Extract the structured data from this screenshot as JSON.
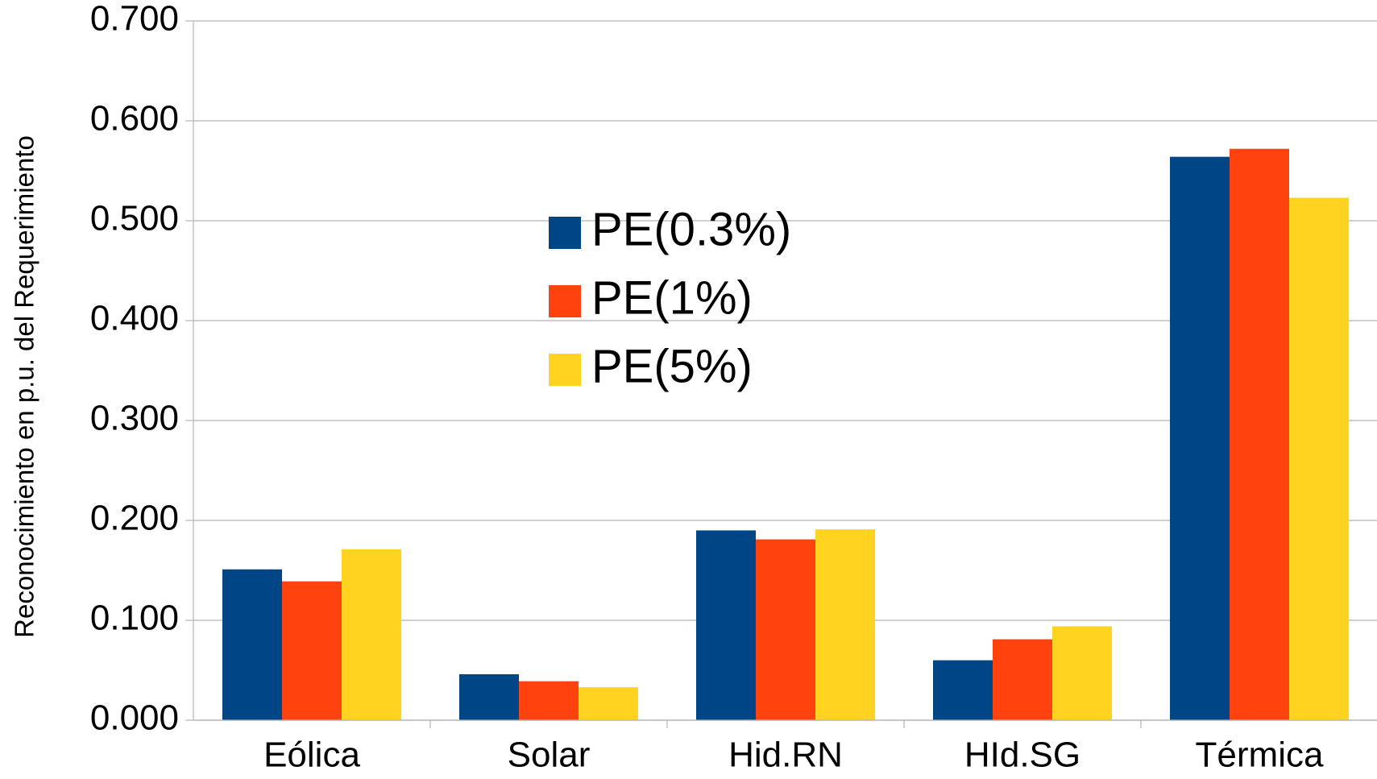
{
  "chart_data": {
    "type": "bar",
    "y_label": "Reconocimiento en p.u. del Requerimiento",
    "categories": [
      "Eólica",
      "Solar",
      "Hid.RN",
      "HId.SG",
      "Térmica"
    ],
    "series": [
      {
        "name": "PE(0.3%)",
        "color": "#004586",
        "values": [
          0.151,
          0.046,
          0.19,
          0.06,
          0.564
        ]
      },
      {
        "name": "PE(1%)",
        "color": "#ff420e",
        "values": [
          0.139,
          0.039,
          0.181,
          0.081,
          0.572
        ]
      },
      {
        "name": "PE(5%)",
        "color": "#ffd320",
        "values": [
          0.171,
          0.033,
          0.191,
          0.094,
          0.523
        ]
      }
    ],
    "ylim": [
      0,
      0.7
    ],
    "yticks": [
      {
        "value": 0,
        "label": "0.000"
      },
      {
        "value": 0.1,
        "label": "0.100"
      },
      {
        "value": 0.2,
        "label": "0.200"
      },
      {
        "value": 0.3,
        "label": "0.300"
      },
      {
        "value": 0.4,
        "label": "0.400"
      },
      {
        "value": 0.5,
        "label": "0.500"
      },
      {
        "value": 0.6,
        "label": "0.600"
      },
      {
        "value": 0.7,
        "label": "0.700"
      }
    ],
    "grid": true,
    "legend": "inside"
  }
}
